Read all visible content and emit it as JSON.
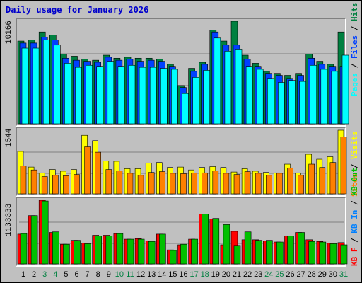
{
  "title": "Daily usage for January 2026",
  "colors": {
    "hits": "#008040",
    "files": "#0040ff",
    "pages": "#00ffff",
    "visits": "#ffff00",
    "sites": "#ff8000",
    "kbf": "#ff0000",
    "kbin": "#0080ff",
    "kbout": "#00c000",
    "weekend": "#008040",
    "weekday": "#000000"
  },
  "chart_data": [
    {
      "type": "bar",
      "scale_label": "10166",
      "legend": [
        "Hits",
        "Files",
        "Pages"
      ],
      "x": [
        1,
        2,
        3,
        4,
        5,
        6,
        7,
        8,
        9,
        10,
        11,
        12,
        13,
        14,
        15,
        16,
        17,
        18,
        19,
        20,
        21,
        22,
        23,
        24,
        25,
        26,
        27,
        28,
        29,
        30,
        31
      ],
      "ylim": [
        0,
        10166
      ],
      "series": [
        {
          "name": "Hits",
          "values": [
            8200,
            8300,
            9100,
            8800,
            6900,
            6700,
            6400,
            6300,
            6800,
            6500,
            6600,
            6500,
            6500,
            6400,
            5900,
            3800,
            5500,
            6100,
            9300,
            8200,
            10166,
            6800,
            6000,
            5200,
            5000,
            4800,
            5000,
            6900,
            6200,
            5900,
            9100
          ]
        },
        {
          "name": "Files",
          "values": [
            8000,
            8000,
            8600,
            8300,
            6500,
            6300,
            6200,
            6100,
            6600,
            6300,
            6400,
            6200,
            6300,
            6200,
            5700,
            3600,
            5200,
            5900,
            9100,
            7800,
            7800,
            6400,
            5700,
            5000,
            4800,
            4500,
            4800,
            6500,
            5900,
            5700,
            5700
          ]
        },
        {
          "name": "Pages",
          "values": [
            7500,
            7500,
            8300,
            7800,
            6000,
            5600,
            5800,
            5700,
            6200,
            5700,
            5800,
            5600,
            5600,
            5500,
            5400,
            3000,
            4600,
            5300,
            8500,
            7200,
            7400,
            5700,
            5400,
            4500,
            4100,
            4300,
            4200,
            5800,
            5400,
            5200,
            6800
          ]
        }
      ]
    },
    {
      "type": "bar",
      "scale_label": "1544",
      "legend": [
        "Visits",
        "Sites"
      ],
      "x": [
        1,
        2,
        3,
        4,
        5,
        6,
        7,
        8,
        9,
        10,
        11,
        12,
        13,
        14,
        15,
        16,
        17,
        18,
        19,
        20,
        21,
        22,
        23,
        24,
        25,
        26,
        27,
        28,
        29,
        30,
        31
      ],
      "ylim": [
        0,
        1544
      ],
      "series": [
        {
          "name": "Visits",
          "values": [
            1030,
            650,
            510,
            590,
            550,
            590,
            1420,
            1290,
            800,
            790,
            610,
            610,
            750,
            760,
            640,
            650,
            580,
            640,
            660,
            640,
            530,
            610,
            550,
            520,
            510,
            720,
            510,
            960,
            840,
            900,
            1544
          ]
        },
        {
          "name": "Sites",
          "values": [
            680,
            580,
            420,
            450,
            440,
            470,
            1140,
            1010,
            590,
            560,
            500,
            450,
            520,
            540,
            500,
            490,
            510,
            510,
            560,
            500,
            470,
            540,
            500,
            450,
            500,
            630,
            450,
            720,
            640,
            760,
            1380
          ]
        }
      ]
    },
    {
      "type": "bar",
      "scale_label": "1133333",
      "legend": [
        "KB F",
        "KB In",
        "KB Out"
      ],
      "x": [
        1,
        2,
        3,
        4,
        5,
        6,
        7,
        8,
        9,
        10,
        11,
        12,
        13,
        14,
        15,
        16,
        17,
        18,
        19,
        20,
        21,
        22,
        23,
        24,
        25,
        26,
        27,
        28,
        29,
        30,
        31
      ],
      "ylim": [
        0,
        1133333
      ],
      "series": [
        {
          "name": "KB F",
          "values": [
            530000,
            860000,
            1133333,
            560000,
            350000,
            420000,
            370000,
            510000,
            510000,
            540000,
            440000,
            450000,
            410000,
            530000,
            250000,
            340000,
            440000,
            890000,
            800000,
            340000,
            580000,
            430000,
            430000,
            410000,
            390000,
            500000,
            560000,
            430000,
            400000,
            370000,
            380000
          ]
        },
        {
          "name": "KB In",
          "values": [
            0,
            0,
            0,
            0,
            0,
            0,
            0,
            0,
            0,
            0,
            0,
            0,
            0,
            0,
            0,
            0,
            0,
            0,
            0,
            0,
            0,
            0,
            0,
            0,
            0,
            0,
            0,
            0,
            0,
            0,
            0
          ]
        },
        {
          "name": "KB Out",
          "values": [
            540000,
            860000,
            1120000,
            570000,
            350000,
            420000,
            360000,
            500000,
            500000,
            540000,
            440000,
            440000,
            400000,
            530000,
            240000,
            350000,
            440000,
            890000,
            810000,
            700000,
            330000,
            570000,
            420000,
            420000,
            390000,
            500000,
            560000,
            400000,
            390000,
            360000,
            340000
          ]
        }
      ]
    }
  ],
  "days": [
    {
      "label": "1",
      "weekend": false
    },
    {
      "label": "2",
      "weekend": false
    },
    {
      "label": "3",
      "weekend": true
    },
    {
      "label": "4",
      "weekend": true
    },
    {
      "label": "5",
      "weekend": false
    },
    {
      "label": "6",
      "weekend": false
    },
    {
      "label": "7",
      "weekend": false
    },
    {
      "label": "8",
      "weekend": false
    },
    {
      "label": "9",
      "weekend": false
    },
    {
      "label": "10",
      "weekend": true
    },
    {
      "label": "11",
      "weekend": true
    },
    {
      "label": "12",
      "weekend": false
    },
    {
      "label": "13",
      "weekend": false
    },
    {
      "label": "14",
      "weekend": false
    },
    {
      "label": "15",
      "weekend": false
    },
    {
      "label": "16",
      "weekend": false
    },
    {
      "label": "17",
      "weekend": true
    },
    {
      "label": "18",
      "weekend": true
    },
    {
      "label": "19",
      "weekend": false
    },
    {
      "label": "20",
      "weekend": false
    },
    {
      "label": "21",
      "weekend": false
    },
    {
      "label": "22",
      "weekend": false
    },
    {
      "label": "23",
      "weekend": false
    },
    {
      "label": "24",
      "weekend": true
    },
    {
      "label": "25",
      "weekend": true
    },
    {
      "label": "26",
      "weekend": false
    },
    {
      "label": "27",
      "weekend": false
    },
    {
      "label": "28",
      "weekend": false
    },
    {
      "label": "29",
      "weekend": false
    },
    {
      "label": "30",
      "weekend": false
    },
    {
      "label": "31",
      "weekend": true
    }
  ]
}
